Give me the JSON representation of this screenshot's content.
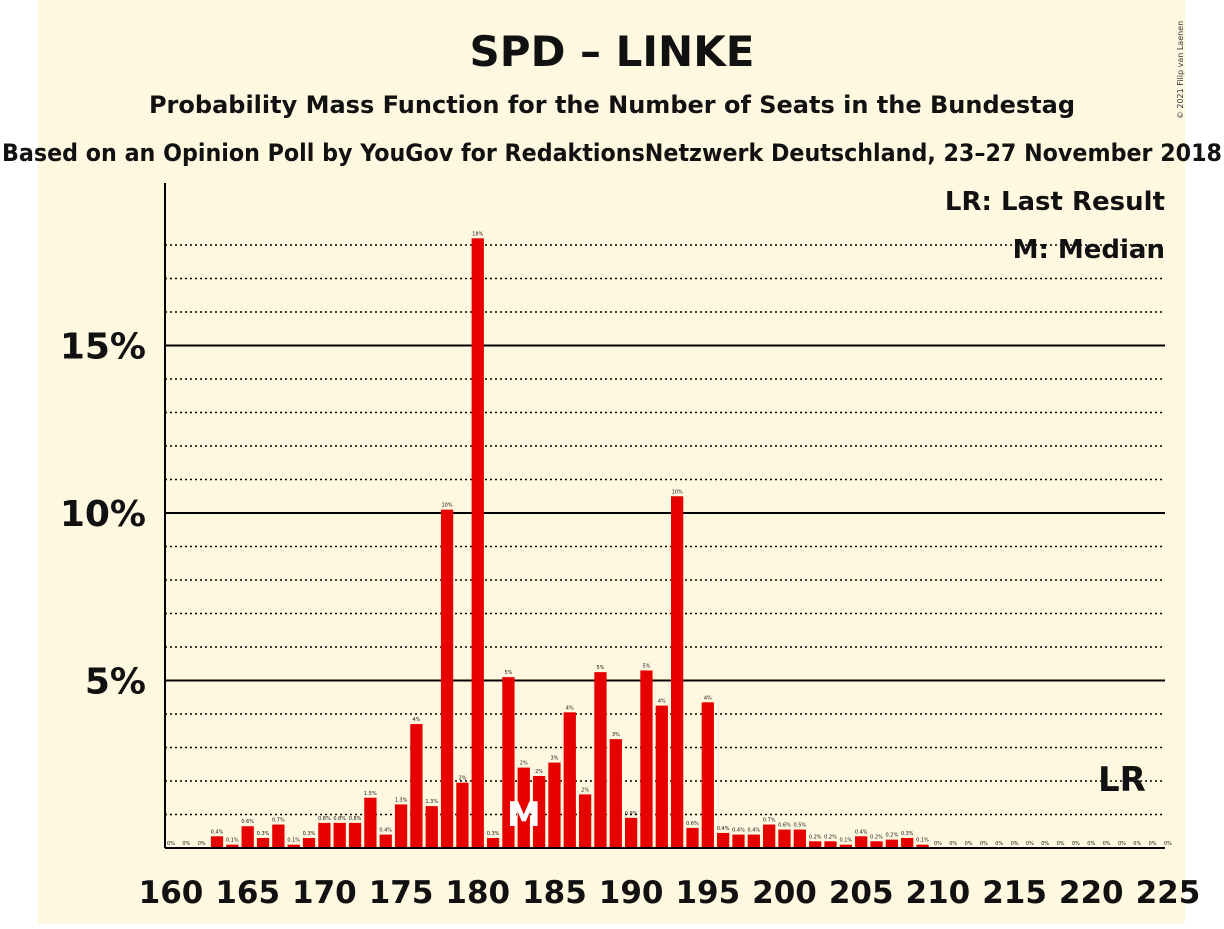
{
  "header": {
    "title": "SPD – LINKE",
    "subtitle": "Probability Mass Function for the Number of Seats in the Bundestag",
    "source": "Based on an Opinion Poll by YouGov for RedaktionsNetzwerk Deutschland, 23–27 November 2018",
    "copyright": "© 2021 Filip van Laenen"
  },
  "legend": {
    "last_result": "LR: Last Result",
    "median": "M: Median"
  },
  "colors": {
    "background": "#fff8e0",
    "bar": "#e60000",
    "axis": "#000000"
  },
  "chart_data": {
    "type": "bar",
    "xlim": [
      160,
      225
    ],
    "ylim": [
      0,
      20
    ],
    "x_ticks": [
      "160",
      "165",
      "170",
      "175",
      "180",
      "185",
      "190",
      "195",
      "200",
      "205",
      "210",
      "215",
      "220",
      "225"
    ],
    "y_ticks": [
      {
        "value": 5,
        "label": "5%"
      },
      {
        "value": 10,
        "label": "10%"
      },
      {
        "value": 15,
        "label": "15%"
      }
    ],
    "minor_grid_step": 1,
    "x": [
      160,
      161,
      162,
      163,
      164,
      165,
      166,
      167,
      168,
      169,
      170,
      171,
      172,
      173,
      174,
      175,
      176,
      177,
      178,
      179,
      180,
      181,
      182,
      183,
      184,
      185,
      186,
      187,
      188,
      189,
      190,
      191,
      192,
      193,
      194,
      195,
      196,
      197,
      198,
      199,
      200,
      201,
      202,
      203,
      204,
      205,
      206,
      207,
      208,
      209,
      210,
      211,
      212,
      213,
      214,
      215,
      216,
      217,
      218,
      219,
      220,
      221,
      222,
      223,
      224,
      225
    ],
    "values": [
      0,
      0,
      0,
      0.35,
      0.1,
      0.65,
      0.3,
      0.7,
      0.1,
      0.3,
      0.75,
      0.75,
      0.75,
      1.5,
      0.4,
      1.3,
      3.7,
      1.25,
      10.1,
      1.95,
      18.2,
      0.3,
      5.1,
      2.4,
      2.15,
      2.55,
      4.05,
      1.6,
      5.25,
      3.25,
      0.9,
      5.3,
      4.25,
      10.5,
      0.6,
      4.35,
      0.45,
      0.4,
      0.4,
      0.7,
      0.55,
      0.55,
      0.2,
      0.2,
      0.1,
      0.35,
      0.2,
      0.25,
      0.3,
      0.1,
      0,
      0,
      0,
      0,
      0,
      0,
      0,
      0,
      0,
      0,
      0,
      0,
      0,
      0,
      0,
      0
    ],
    "labels": [
      "0%",
      "0%",
      "0%",
      "0.4%",
      "0.1%",
      "0.6%",
      "0.3%",
      "0.7%",
      "0.1%",
      "0.3%",
      "0.8%",
      "0.8%",
      "0.8%",
      "1.5%",
      "0.4%",
      "1.3%",
      "4%",
      "1.3%",
      "10%",
      "2%",
      "18%",
      "0.3%",
      "5%",
      "2%",
      "2%",
      "3%",
      "4%",
      "2%",
      "5%",
      "3%",
      "0.9%",
      "5%",
      "4%",
      "10%",
      "0.6%",
      "4%",
      "0.4%",
      "0.4%",
      "0.4%",
      "0.7%",
      "0.6%",
      "0.5%",
      "0.2%",
      "0.2%",
      "0.1%",
      "0.4%",
      "0.2%",
      "0.2%",
      "0.3%",
      "0.1%",
      "0%",
      "0%",
      "0%",
      "0%",
      "0%",
      "0%",
      "0%",
      "0%",
      "0%",
      "0%",
      "0%",
      "0%",
      "0%",
      "0%",
      "0%",
      "0%"
    ],
    "median": 183,
    "median_label": "M",
    "last_result": 222,
    "last_result_label": "LR"
  }
}
